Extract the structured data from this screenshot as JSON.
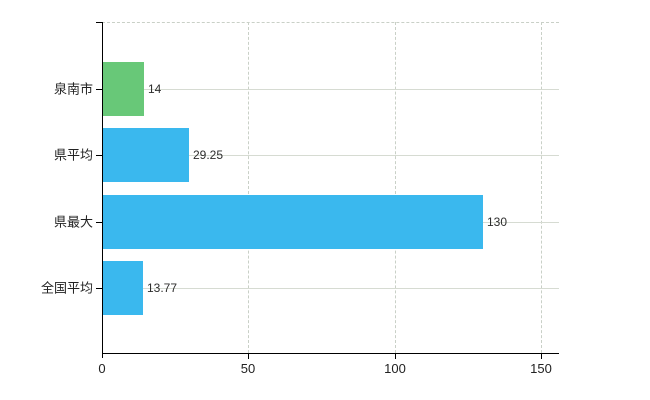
{
  "chart_data": {
    "type": "bar",
    "orientation": "horizontal",
    "title": "",
    "xlabel": "",
    "ylabel": "",
    "categories": [
      "泉南市",
      "県平均",
      "県最大",
      "全国平均"
    ],
    "values": [
      14,
      29.25,
      130,
      13.77
    ],
    "value_labels": [
      "14",
      "29.25",
      "130",
      "13.77"
    ],
    "bar_colors": [
      "#68c878",
      "#3ab8ee",
      "#3ab8ee",
      "#3ab8ee"
    ],
    "xticks": [
      0,
      50,
      100,
      150
    ],
    "xtick_labels": [
      "0",
      "50",
      "100",
      "150"
    ],
    "xlim": [
      0,
      156
    ],
    "grid": true,
    "legend": "none"
  },
  "colors": {
    "background": "#ffffff",
    "bar_green": "#68c878",
    "bar_blue": "#3ab8ee",
    "axis_line": "#000000",
    "gridline_horizontal": "#d6dbd2",
    "gridline_vertical_dashed": "#c9d0c7",
    "label_text": "#222222",
    "value_text": "#2e2e2e"
  }
}
